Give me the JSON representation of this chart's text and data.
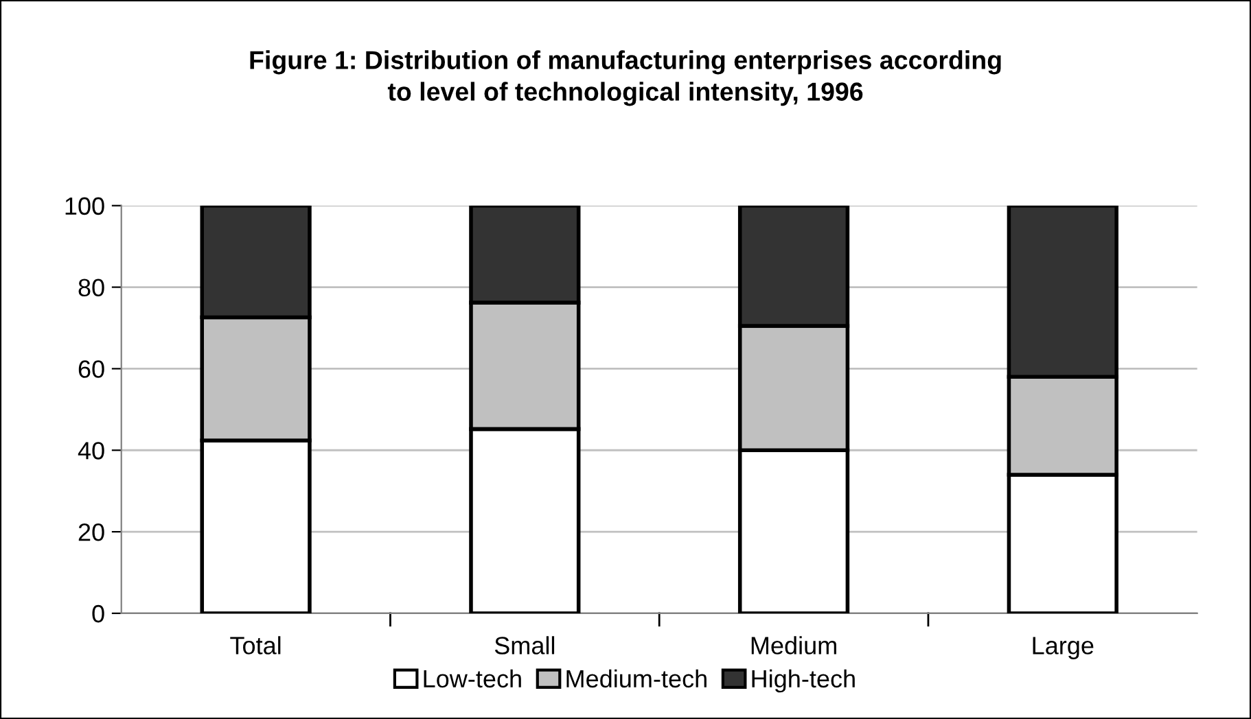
{
  "chart_data": {
    "type": "bar",
    "stacked": true,
    "title": "Figure 1: Distribution of manufacturing enterprises according\nto level of technological intensity, 1996",
    "categories": [
      "Total",
      "Small",
      "Medium",
      "Large"
    ],
    "series": [
      {
        "name": "Low-tech",
        "color": "#ffffff",
        "values": [
          42.4,
          45.2,
          40,
          34
        ]
      },
      {
        "name": "Medium-tech",
        "color": "#c0c0c0",
        "values": [
          30.2,
          31,
          30.5,
          24
        ]
      },
      {
        "name": "High-tech",
        "color": "#333333",
        "values": [
          27.4,
          23.8,
          29.5,
          42
        ]
      }
    ],
    "ylim": [
      0,
      100
    ],
    "yticks": [
      0,
      20,
      40,
      60,
      80,
      100
    ],
    "grid": "y",
    "legend": "bottom"
  }
}
